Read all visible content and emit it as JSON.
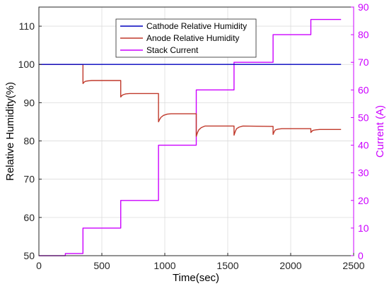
{
  "chart_data": {
    "type": "line",
    "title": "",
    "xlabel": "Time(sec)",
    "ylabel_left": "Relative Humidity(%)",
    "ylabel_right": "Current (A)",
    "xlim": [
      0,
      2500
    ],
    "ylim_left": [
      50,
      115
    ],
    "ylim_right": [
      0,
      90
    ],
    "xticks": [
      "0",
      "500",
      "1000",
      "1500",
      "2000",
      "2500"
    ],
    "xtick_values": [
      0,
      500,
      1000,
      1500,
      2000,
      2500
    ],
    "yticks_left": [
      "50",
      "60",
      "70",
      "80",
      "90",
      "100",
      "110"
    ],
    "ytick_left_values": [
      50,
      60,
      70,
      80,
      90,
      100,
      110
    ],
    "yticks_right": [
      "0",
      "10",
      "20",
      "30",
      "40",
      "50",
      "60",
      "70",
      "80",
      "90"
    ],
    "ytick_right_values": [
      0,
      10,
      20,
      30,
      40,
      50,
      60,
      70,
      80,
      90
    ],
    "grid": true,
    "legend_position": "top-center",
    "series": [
      {
        "name": "Cathode Relative Humidity",
        "axis": "left",
        "color": "#0000bf",
        "x": [
          0,
          2400
        ],
        "y": [
          100,
          100
        ]
      },
      {
        "name": "Anode Relative Humidity",
        "axis": "left",
        "color": "#c0392b",
        "x": [
          0,
          350,
          350,
          360,
          370,
          390,
          420,
          650,
          650,
          660,
          670,
          690,
          720,
          950,
          950,
          960,
          970,
          990,
          1020,
          1050,
          1250,
          1250,
          1260,
          1270,
          1290,
          1320,
          1550,
          1550,
          1560,
          1570,
          1590,
          1620,
          1860,
          1860,
          1870,
          1880,
          1900,
          1930,
          2160,
          2160,
          2170,
          2180,
          2200,
          2230,
          2400
        ],
        "y": [
          100,
          100,
          95,
          95.4,
          95.6,
          95.7,
          95.8,
          95.8,
          91.5,
          91.9,
          92.1,
          92.3,
          92.4,
          92.4,
          85,
          85.7,
          86.2,
          86.7,
          87,
          87.1,
          87.1,
          81.2,
          82.2,
          82.9,
          83.5,
          83.9,
          83.9,
          81.5,
          82.5,
          83.2,
          83.6,
          83.9,
          83.8,
          81.7,
          82.5,
          82.9,
          83.1,
          83.2,
          83.2,
          82.2,
          82.6,
          82.8,
          82.9,
          83,
          83
        ]
      },
      {
        "name": "Stack Current",
        "axis": "right",
        "color": "#cc00ff",
        "x": [
          0,
          210,
          210,
          350,
          350,
          650,
          650,
          950,
          950,
          1250,
          1250,
          1550,
          1550,
          1860,
          1860,
          2160,
          2160,
          2400
        ],
        "y": [
          0,
          0,
          0.8,
          0.8,
          10,
          10,
          20,
          20,
          40,
          40,
          60,
          60,
          70,
          70,
          80,
          80,
          85.5,
          85.5
        ]
      }
    ]
  }
}
